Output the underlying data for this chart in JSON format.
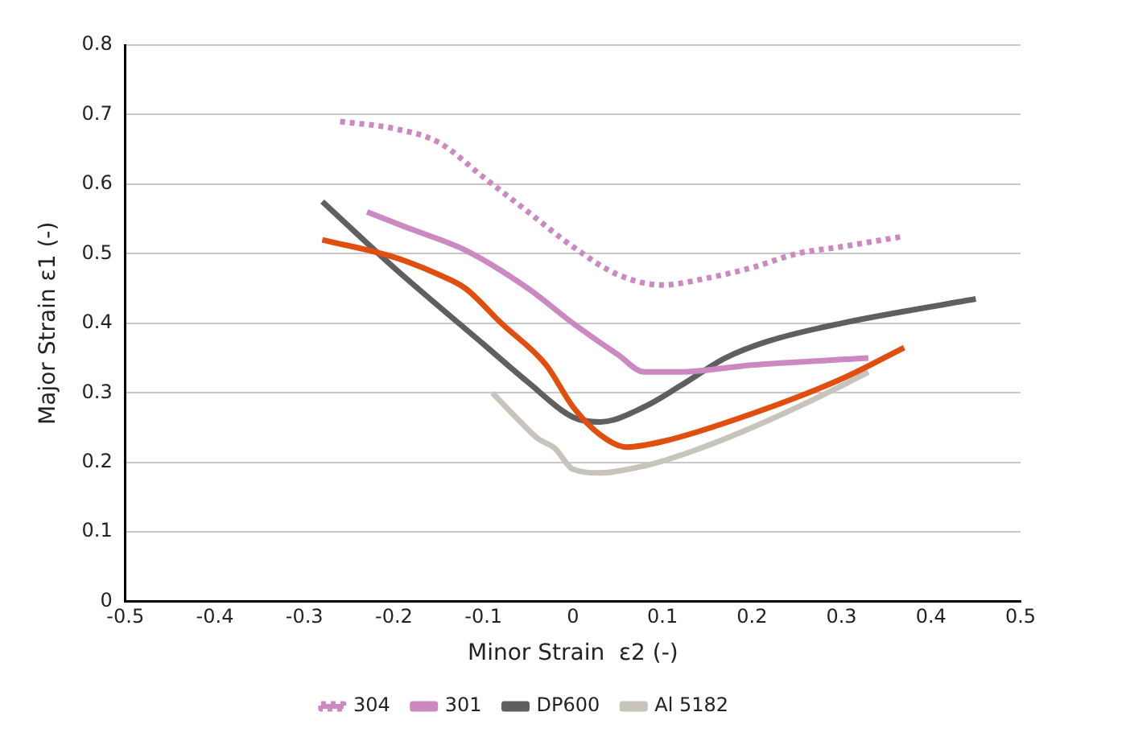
{
  "chart_data": {
    "type": "line",
    "xlabel": "Minor Strain  ε2 (-)",
    "ylabel": "Major Strain ε1 (-)",
    "xlim": [
      -0.5,
      0.5
    ],
    "xticks": [
      -0.5,
      -0.4,
      -0.3,
      -0.2,
      -0.1,
      0,
      0.1,
      0.2,
      0.3,
      0.4,
      0.5
    ],
    "ylim": [
      0,
      0.8
    ],
    "yticks": [
      0,
      0.1,
      0.2,
      0.3,
      0.4,
      0.5,
      0.6,
      0.7,
      0.8
    ],
    "grid": "y",
    "legend": "bottom",
    "marker": "none",
    "series": [
      {
        "name": "304",
        "color": "#cc88c0",
        "line_style": "dotted",
        "x": [
          -0.26,
          -0.2,
          -0.15,
          -0.1,
          -0.05,
          0,
          0.05,
          0.1,
          0.15,
          0.2,
          0.25,
          0.3,
          0.37
        ],
        "values": [
          0.69,
          0.68,
          0.66,
          0.61,
          0.56,
          0.51,
          0.47,
          0.455,
          0.465,
          0.48,
          0.5,
          0.51,
          0.525
        ]
      },
      {
        "name": "301",
        "color": "#cc88c0",
        "line_style": "solid",
        "x": [
          -0.23,
          -0.18,
          -0.12,
          -0.05,
          0,
          0.05,
          0.08,
          0.12,
          0.2,
          0.33
        ],
        "values": [
          0.56,
          0.535,
          0.505,
          0.45,
          0.4,
          0.355,
          0.33,
          0.33,
          0.34,
          0.35
        ]
      },
      {
        "color": "#e04e10",
        "line_style": "solid",
        "x": [
          -0.28,
          -0.2,
          -0.15,
          -0.12,
          -0.08,
          -0.03,
          0,
          0.03,
          0.06,
          0.1,
          0.2,
          0.3,
          0.37
        ],
        "values": [
          0.52,
          0.495,
          0.47,
          0.45,
          0.4,
          0.34,
          0.28,
          0.24,
          0.222,
          0.23,
          0.27,
          0.32,
          0.365
        ]
      },
      {
        "name": "DP600",
        "color": "#5f5f5f",
        "line_style": "solid",
        "x": [
          -0.28,
          -0.2,
          -0.1,
          -0.05,
          0,
          0.03,
          0.08,
          0.12,
          0.17,
          0.22,
          0.3,
          0.45
        ],
        "values": [
          0.575,
          0.48,
          0.37,
          0.315,
          0.265,
          0.258,
          0.28,
          0.31,
          0.35,
          0.375,
          0.4,
          0.435
        ]
      },
      {
        "name": "Al 5182",
        "color": "#c8c4bc",
        "line_style": "solid",
        "x": [
          -0.09,
          -0.06,
          -0.04,
          -0.02,
          0,
          0.03,
          0.08,
          0.12,
          0.2,
          0.3,
          0.33
        ],
        "values": [
          0.3,
          0.26,
          0.235,
          0.22,
          0.19,
          0.185,
          0.195,
          0.21,
          0.25,
          0.31,
          0.33
        ]
      }
    ]
  }
}
